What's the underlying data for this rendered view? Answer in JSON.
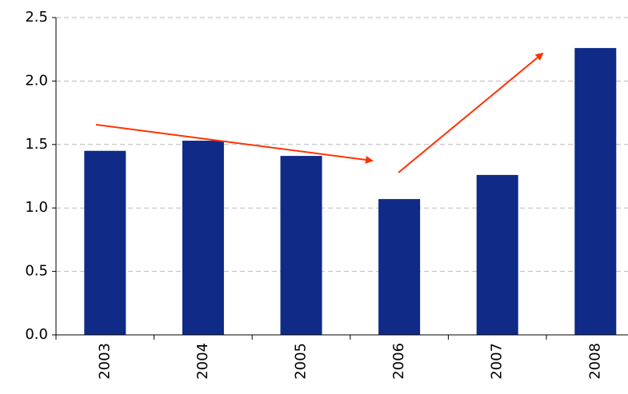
{
  "chart_data": {
    "type": "bar",
    "categories": [
      "2003",
      "2004",
      "2005",
      "2006",
      "2007",
      "2008"
    ],
    "values": [
      1.45,
      1.53,
      1.41,
      1.07,
      1.26,
      2.26
    ],
    "color": "#0f2a87",
    "ylim": [
      0,
      2.5
    ],
    "yticks": [
      {
        "value": 0,
        "label": "0.0"
      },
      0.5,
      {
        "value": 1,
        "label": "1.0"
      },
      1.5,
      {
        "value": 2,
        "label": "2.0"
      },
      2.5
    ],
    "grid": true
  }
}
